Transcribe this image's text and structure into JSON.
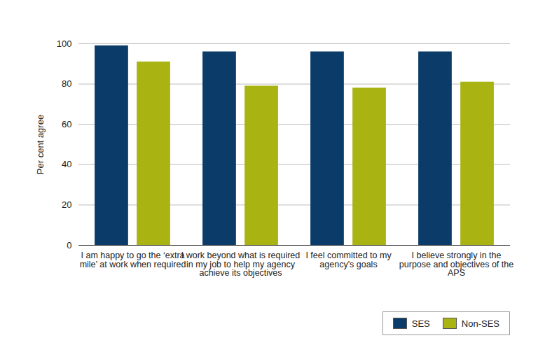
{
  "chart_data": {
    "type": "bar",
    "y_label": "Per cent agree",
    "categories": [
      "I am happy to go the ‘extra mile’ at work when required",
      "I work beyond what is required in my job to help my agency achieve its objectives",
      "I feel committed to my agency's goals",
      "I believe strongly in the purpose and objectives of the APS"
    ],
    "series": [
      {
        "name": "SES",
        "color": "#0b3b68",
        "values": [
          99,
          96,
          96,
          96
        ]
      },
      {
        "name": "Non-SES",
        "color": "#a9b312",
        "values": [
          91,
          79,
          78,
          81
        ]
      }
    ],
    "ylim": [
      0,
      100
    ],
    "yticks": [
      0,
      20,
      40,
      60,
      80,
      100
    ],
    "grid": true,
    "legend": "bottom-right"
  }
}
